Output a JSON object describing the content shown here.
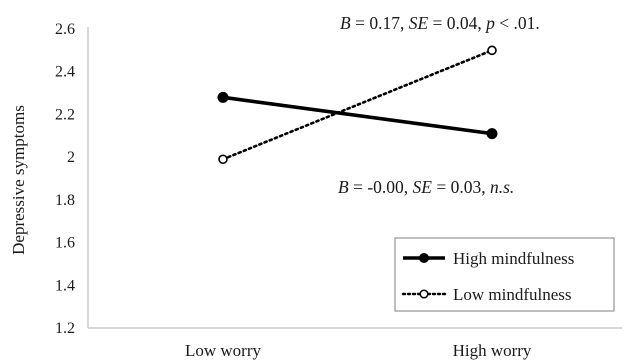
{
  "chart_data": {
    "type": "line",
    "title": "",
    "xlabel": "",
    "ylabel": "Depressive symptoms",
    "categories": [
      "Low worry",
      "High worry"
    ],
    "ylim": [
      1.2,
      2.6
    ],
    "yticks": [
      "1.2",
      "1.4",
      "1.6",
      "1.8",
      "2",
      "2.2",
      "2.4",
      "2.6"
    ],
    "grid": false,
    "legend_position": "bottom-right",
    "series": [
      {
        "name": "High mindfulness",
        "values": [
          2.28,
          2.11
        ],
        "line_style": "solid",
        "marker": "filled-circle",
        "color": "#000000"
      },
      {
        "name": "Low mindfulness",
        "values": [
          1.99,
          2.5
        ],
        "line_style": "dotted",
        "marker": "open-circle",
        "color": "#000000"
      }
    ],
    "annotations": [
      {
        "id": "top",
        "parts": [
          {
            "t": "B",
            "i": true
          },
          {
            "t": " = 0.17, ",
            "i": false
          },
          {
            "t": "SE",
            "i": true
          },
          {
            "t": " = 0.04, ",
            "i": false
          },
          {
            "t": "p",
            "i": true
          },
          {
            "t": " < .01.",
            "i": false
          }
        ]
      },
      {
        "id": "bottom",
        "parts": [
          {
            "t": "B",
            "i": true
          },
          {
            "t": " = -0.00, ",
            "i": false
          },
          {
            "t": "SE",
            "i": true
          },
          {
            "t": " = 0.03, ",
            "i": false
          },
          {
            "t": "n.s.",
            "i": true
          }
        ]
      }
    ]
  }
}
